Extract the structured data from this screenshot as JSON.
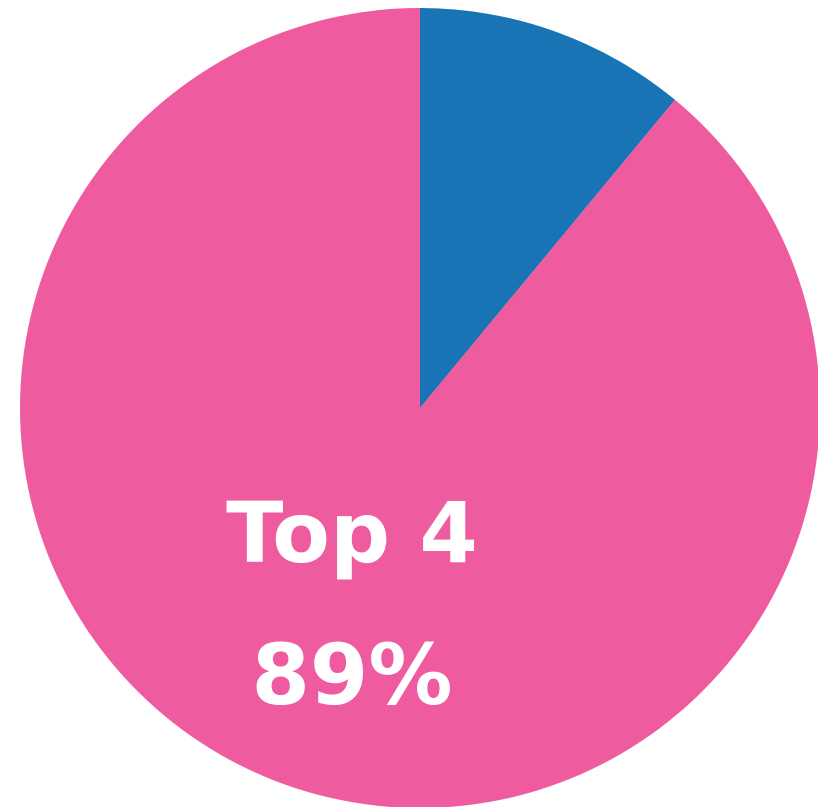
{
  "chart_data": {
    "type": "pie",
    "start": "top",
    "direction": "clockwise",
    "slices": [
      {
        "label": "",
        "value": 11,
        "color": "#1874b4"
      },
      {
        "label": "Top 4",
        "value": 89,
        "value_label": "89%",
        "color": "#ee5c9f"
      }
    ]
  }
}
